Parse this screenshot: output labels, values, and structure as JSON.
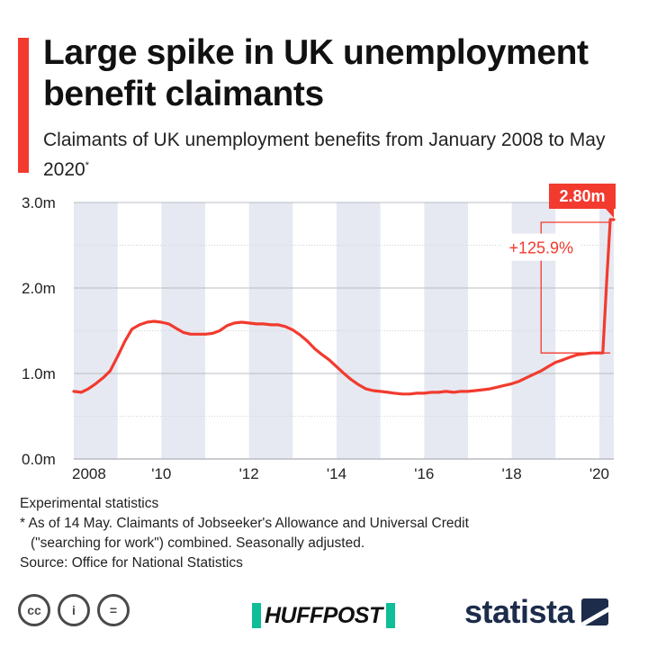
{
  "header": {
    "title": "Large spike in UK unemployment benefit claimants",
    "subtitle": "Claimants of UK unemployment benefits from January 2008 to May 2020",
    "subtitle_mark": "*"
  },
  "chart_data": {
    "type": "line",
    "title": "Large spike in UK unemployment benefit claimants",
    "subtitle": "Claimants of UK unemployment benefits from January 2008 to May 2020*",
    "xlabel": "",
    "ylabel": "",
    "x_range": [
      2008.0,
      2020.33
    ],
    "ylim": [
      0,
      3.0
    ],
    "y_ticks": [
      0,
      1.0,
      2.0,
      3.0
    ],
    "y_tick_labels": [
      "0.0m",
      "1.0m",
      "2.0m",
      "3.0m"
    ],
    "x_ticks": [
      2008,
      2010,
      2012,
      2014,
      2016,
      2018,
      2020
    ],
    "x_tick_labels": [
      "2008",
      "'10",
      "'12",
      "'14",
      "'16",
      "'18",
      "'20"
    ],
    "grid": true,
    "line_color": "#f23a2e",
    "band_color": "#e6e9f1",
    "series": [
      {
        "x": [
          2008.0,
          2008.17,
          2008.33,
          2008.5,
          2008.67,
          2008.83,
          2009.0,
          2009.17,
          2009.33,
          2009.5,
          2009.67,
          2009.83,
          2010.0,
          2010.17,
          2010.33,
          2010.5,
          2010.67,
          2010.83,
          2011.0,
          2011.17,
          2011.33,
          2011.5,
          2011.67,
          2011.83,
          2012.0,
          2012.17,
          2012.33,
          2012.5,
          2012.67,
          2012.83,
          2013.0,
          2013.17,
          2013.33,
          2013.5,
          2013.67,
          2013.83,
          2014.0,
          2014.17,
          2014.33,
          2014.5,
          2014.67,
          2014.83,
          2015.0,
          2015.17,
          2015.33,
          2015.5,
          2015.67,
          2015.83,
          2016.0,
          2016.17,
          2016.33,
          2016.5,
          2016.67,
          2016.83,
          2017.0,
          2017.17,
          2017.33,
          2017.5,
          2017.67,
          2017.83,
          2018.0,
          2018.17,
          2018.33,
          2018.5,
          2018.67,
          2018.83,
          2019.0,
          2019.17,
          2019.33,
          2019.5,
          2019.67,
          2019.83,
          2020.0,
          2020.08,
          2020.17,
          2020.25,
          2020.33
        ],
        "values": [
          0.79,
          0.78,
          0.82,
          0.88,
          0.95,
          1.03,
          1.2,
          1.38,
          1.52,
          1.57,
          1.6,
          1.61,
          1.6,
          1.58,
          1.53,
          1.48,
          1.46,
          1.46,
          1.46,
          1.47,
          1.5,
          1.56,
          1.59,
          1.6,
          1.59,
          1.58,
          1.58,
          1.57,
          1.57,
          1.55,
          1.51,
          1.45,
          1.38,
          1.29,
          1.22,
          1.16,
          1.08,
          1.0,
          0.93,
          0.87,
          0.82,
          0.8,
          0.79,
          0.78,
          0.77,
          0.76,
          0.76,
          0.77,
          0.77,
          0.78,
          0.78,
          0.79,
          0.78,
          0.79,
          0.79,
          0.8,
          0.81,
          0.82,
          0.84,
          0.86,
          0.88,
          0.91,
          0.95,
          0.99,
          1.03,
          1.08,
          1.13,
          1.16,
          1.19,
          1.22,
          1.23,
          1.24,
          1.24,
          1.24,
          2.1,
          2.8,
          2.8
        ]
      }
    ],
    "annotations": {
      "end_label": "2.80m",
      "change_label": "+125.9%",
      "change_from_value": 1.24,
      "change_to_value": 2.8,
      "change_from_x": 2018.67
    }
  },
  "notes": {
    "line1": "Experimental statistics",
    "line2": "* As of 14 May. Claimants of Jobseeker's Allowance and Universal Credit",
    "line3": "(\"searching for work\") combined. Seasonally adjusted.",
    "line4": "Source: Office for National Statistics"
  },
  "footer": {
    "cc_icons": [
      "cc-icon",
      "attribution-icon",
      "no-derivatives-icon"
    ],
    "cc_glyphs": [
      "cc",
      "i",
      "="
    ],
    "huffpost_label": "HUFFPOST",
    "statista_label": "statista"
  }
}
